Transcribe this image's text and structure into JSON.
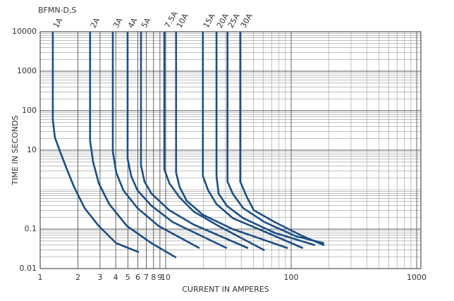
{
  "chart_data": {
    "type": "line",
    "title": "BFMN-D,S",
    "xlabel": "CURRENT IN AMPERES",
    "ylabel": "TIME IN SECONDS",
    "xscale": "log",
    "yscale": "log",
    "grid": true,
    "color": "#1b4f86",
    "xlim": [
      1,
      1080
    ],
    "ylim": [
      0.01,
      10000
    ],
    "xticks": [
      1,
      2,
      3,
      4,
      5,
      6,
      7,
      8,
      9,
      10,
      100,
      1000
    ],
    "xminorticks": [
      20,
      30,
      40,
      50,
      60,
      70,
      80,
      90,
      200,
      300,
      400,
      500,
      600,
      700,
      800,
      900
    ],
    "yticks": [
      0.01,
      0.1,
      10,
      100,
      1000,
      10000
    ],
    "yminorticks": [
      0.02,
      0.03,
      0.04,
      0.05,
      0.06,
      0.07,
      0.08,
      0.09,
      0.2,
      0.3,
      0.4,
      0.5,
      0.6,
      0.7,
      0.8,
      0.9,
      1,
      2,
      3,
      4,
      5,
      6,
      7,
      8,
      9,
      20,
      30,
      40,
      50,
      60,
      70,
      80,
      90,
      200,
      300,
      400,
      500,
      600,
      700,
      800,
      900,
      2000,
      3000,
      4000,
      5000,
      6000,
      7000,
      8000,
      9000
    ],
    "series": [
      {
        "name": "1A",
        "x": [
          1.26,
          1.26,
          1.31,
          1.44,
          1.63,
          1.86,
          2.26,
          2.93,
          4.04,
          6.12
        ],
        "values": [
          10000,
          58.6,
          20.9,
          9.2,
          3.3,
          1.18,
          0.34,
          0.12,
          0.044,
          0.026
        ]
      },
      {
        "name": "2A",
        "x": [
          2.5,
          2.5,
          2.64,
          2.93,
          3.55,
          4.91,
          7.71,
          12.1
        ],
        "values": [
          10000,
          17.1,
          5.0,
          1.45,
          0.43,
          0.12,
          0.044,
          0.019
        ]
      },
      {
        "name": "3A",
        "x": [
          3.79,
          3.79,
          4.04,
          4.6,
          5.96,
          8.79,
          18.6
        ],
        "values": [
          10000,
          9.2,
          2.7,
          0.96,
          0.34,
          0.12,
          0.033
        ]
      },
      {
        "name": "4A",
        "x": [
          4.97,
          4.97,
          5.31,
          5.96,
          7.71,
          11.4,
          30.7
        ],
        "values": [
          10000,
          6.1,
          2.2,
          0.96,
          0.39,
          0.15,
          0.033
        ]
      },
      {
        "name": "5A",
        "x": [
          6.36,
          6.36,
          6.78,
          7.71,
          10.7,
          16.7,
          45.3
        ],
        "values": [
          10000,
          4.1,
          1.6,
          0.79,
          0.3,
          0.13,
          0.033
        ]
      },
      {
        "name": "7.5A",
        "x": [
          9.75,
          9.75,
          10.7,
          12.9,
          16.7,
          26.4,
          61.4
        ],
        "values": [
          10000,
          3.3,
          1.45,
          0.64,
          0.28,
          0.12,
          0.029
        ]
      },
      {
        "name": "10A",
        "x": [
          12.1,
          12.1,
          12.9,
          14.7,
          19.8,
          34.2,
          93.9
        ],
        "values": [
          10000,
          2.7,
          1.18,
          0.52,
          0.23,
          0.1,
          0.033
        ]
      },
      {
        "name": "15A",
        "x": [
          19.8,
          19.8,
          21.8,
          25.4,
          34.2,
          65.0,
          124
        ],
        "values": [
          10000,
          2.2,
          0.96,
          0.43,
          0.19,
          0.08,
          0.033
        ]
      },
      {
        "name": "20A",
        "x": [
          25.4,
          25.4,
          26.4,
          30.7,
          41.4,
          74.0,
          155
        ],
        "values": [
          10000,
          2.2,
          0.79,
          0.39,
          0.19,
          0.08,
          0.039
        ]
      },
      {
        "name": "25A",
        "x": [
          31.1,
          31.1,
          34.2,
          41.4,
          61.4,
          109,
          183
        ],
        "values": [
          10000,
          1.6,
          0.79,
          0.34,
          0.15,
          0.066,
          0.044
        ]
      },
      {
        "name": "30A",
        "x": [
          39.3,
          39.3,
          44.4,
          50.4,
          74.0,
          124,
          183
        ],
        "values": [
          10000,
          1.6,
          0.64,
          0.3,
          0.15,
          0.066,
          0.039
        ]
      }
    ]
  }
}
